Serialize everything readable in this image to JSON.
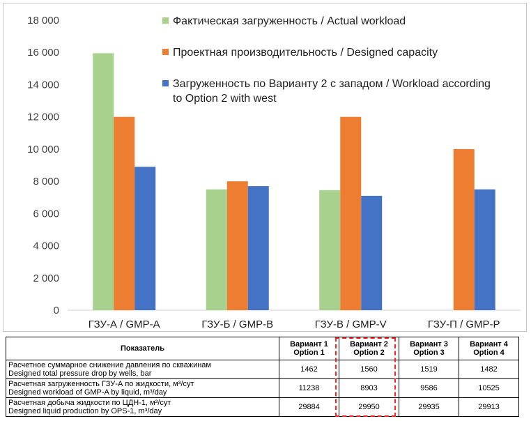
{
  "chart_data": {
    "type": "bar",
    "title": "",
    "xlabel": "",
    "ylabel": "",
    "ylim": [
      0,
      18000
    ],
    "y_ticks": [
      0,
      2000,
      4000,
      6000,
      8000,
      10000,
      12000,
      14000,
      16000,
      18000
    ],
    "y_tick_labels": [
      "0",
      "2 000",
      "4 000",
      "6 000",
      "8 000",
      "10 000",
      "12 000",
      "14 000",
      "16 000",
      "18 000"
    ],
    "grid": false,
    "legend_position": "top-right",
    "categories": [
      "ГЗУ-А / GMP-A",
      "ГЗУ-Б / GMP-B",
      "ГЗУ-В / GMP-V",
      "ГЗУ-П / GMP-P"
    ],
    "series": [
      {
        "name": "Фактическая загруженность / Actual workload",
        "color": "#a9d18e",
        "values": [
          15950,
          7500,
          7450,
          null
        ]
      },
      {
        "name": "Проектная производительность / Designed capacity",
        "color": "#ed7d31",
        "values": [
          12000,
          8000,
          12000,
          10000
        ]
      },
      {
        "name_lines": [
          "Загруженность по Варианту 2 с западом / Workload according",
          "to Option 2 with west"
        ],
        "name": "Загруженность по Варианту 2 с западом / Workload according to Option 2 with west",
        "color": "#4472c4",
        "values": [
          8900,
          7700,
          7100,
          7500
        ]
      }
    ]
  },
  "table": {
    "header": {
      "indicator": "Показатель",
      "options": [
        [
          "Вариант 1",
          "Option 1"
        ],
        [
          "Вариант 2",
          "Option 2"
        ],
        [
          "Вариант 3",
          "Option 3"
        ],
        [
          "Вариант 4",
          "Option 4"
        ]
      ]
    },
    "rows": [
      {
        "label": [
          "Расчетное суммарное снижение давления по скважинам",
          "Designed total pressure drop by wells, bar"
        ],
        "values": [
          "1462",
          "1560",
          "1519",
          "1482"
        ]
      },
      {
        "label": [
          "Расчетная загруженность ГЗУ-А по жидкости, м³/сут",
          "Designed workload of GMP-A by liquid, m³/day"
        ],
        "values": [
          "11238",
          "8903",
          "9586",
          "10525"
        ]
      },
      {
        "label": [
          "Расчетная добыча жидкости по ЦДН-1, м³/сут",
          "Designed liquid production by OPS-1, m³/day"
        ],
        "values": [
          "29884",
          "29950",
          "29935",
          "29913"
        ]
      }
    ],
    "highlight_color": "#ff2020"
  }
}
